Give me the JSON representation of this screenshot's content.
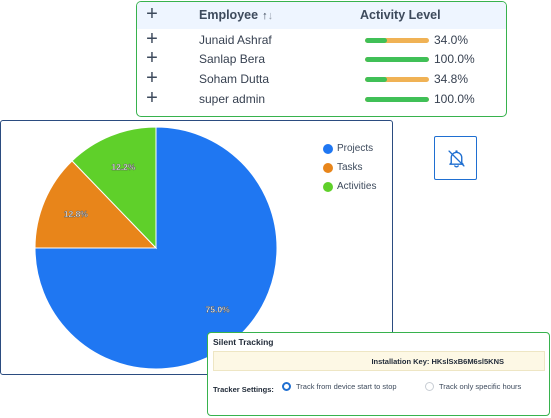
{
  "employee_table": {
    "header": {
      "employee": "Employee",
      "sort_up": "↑",
      "sort_down": "↓",
      "activity": "Activity Level"
    },
    "rows": [
      {
        "name": "Junaid Ashraf",
        "activity_pct": "34.0%",
        "activity_value": 34.0
      },
      {
        "name": "Sanlap Bera",
        "activity_pct": "100.0%",
        "activity_value": 100.0
      },
      {
        "name": "Soham Dutta",
        "activity_pct": "34.8%",
        "activity_value": 34.8
      },
      {
        "name": "super admin",
        "activity_pct": "100.0%",
        "activity_value": 100.0
      }
    ],
    "colors": {
      "bar_fill": "#40c057",
      "bar_track": "#f0b255",
      "border": "#37b24d"
    }
  },
  "chart_data": {
    "type": "pie",
    "categories": [
      "Projects",
      "Tasks",
      "Activities"
    ],
    "values": [
      75.0,
      12.8,
      12.2
    ],
    "labels": [
      "75.0%",
      "12.8%",
      "12.2%"
    ],
    "colors": [
      "#1f77f2",
      "#e8851a",
      "#5fd02a"
    ],
    "legend_position": "top-right"
  },
  "bell_button": {
    "icon": "bell-off-icon",
    "color": "#1f6fd1"
  },
  "silent_tracking": {
    "title": "Silent Tracking",
    "installation_key": "Installation Key: HKslSxB6M6sl5KNS",
    "tracker_settings_label": "Tracker Settings:",
    "options": [
      {
        "label": "Track from device start to stop",
        "selected": true
      },
      {
        "label": "Track only specific hours",
        "selected": false
      }
    ]
  }
}
